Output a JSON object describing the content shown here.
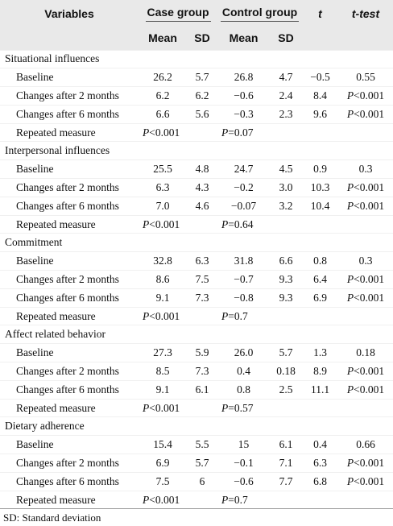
{
  "header": {
    "variables": "Variables",
    "case_group": "Case group",
    "control_group": "Control group",
    "t": "t",
    "t_test": "t-test",
    "case_mean": "Mean",
    "case_sd": "SD",
    "control_mean": "Mean",
    "control_sd": "SD"
  },
  "sections": [
    {
      "title": "Situational influences",
      "rows": [
        [
          "Baseline",
          "26.2",
          "5.7",
          "26.8",
          "4.7",
          "−0.5",
          "0.55"
        ],
        [
          "Changes after 2 months",
          "6.2",
          "6.2",
          "−0.6",
          "2.4",
          "8.4",
          "P<0.001"
        ],
        [
          "Changes after 6 months",
          "6.6",
          "5.6",
          "−0.3",
          "2.3",
          "9.6",
          "P<0.001"
        ],
        [
          "Repeated measure",
          "P<0.001",
          "P=0.07"
        ]
      ]
    },
    {
      "title": "Interpersonal influences",
      "rows": [
        [
          "Baseline",
          "25.5",
          "4.8",
          "24.7",
          "4.5",
          "0.9",
          "0.3"
        ],
        [
          "Changes after 2 months",
          "6.3",
          "4.3",
          "−0.2",
          "3.0",
          "10.3",
          "P<0.001"
        ],
        [
          "Changes after 6 months",
          "7.0",
          "4.6",
          "−0.07",
          "3.2",
          "10.4",
          "P<0.001"
        ],
        [
          "Repeated measure",
          "P<0.001",
          "P=0.64"
        ]
      ]
    },
    {
      "title": "Commitment",
      "rows": [
        [
          "Baseline",
          "32.8",
          "6.3",
          "31.8",
          "6.6",
          "0.8",
          "0.3"
        ],
        [
          "Changes after 2 months",
          "8.6",
          "7.5",
          "−0.7",
          "9.3",
          "6.4",
          "P<0.001"
        ],
        [
          "Changes after 6 months",
          "9.1",
          "7.3",
          "−0.8",
          "9.3",
          "6.9",
          "P<0.001"
        ],
        [
          "Repeated measure",
          "P<0.001",
          "P=0.7"
        ]
      ]
    },
    {
      "title": "Affect related behavior",
      "rows": [
        [
          "Baseline",
          "27.3",
          "5.9",
          "26.0",
          "5.7",
          "1.3",
          "0.18"
        ],
        [
          "Changes after 2 months",
          "8.5",
          "7.3",
          "0.4",
          "0.18",
          "8.9",
          "P<0.001"
        ],
        [
          "Changes after 6 months",
          "9.1",
          "6.1",
          "0.8",
          "2.5",
          "11.1",
          "P<0.001"
        ],
        [
          "Repeated measure",
          "P<0.001",
          "P=0.57"
        ]
      ]
    },
    {
      "title": "Dietary adherence",
      "rows": [
        [
          "Baseline",
          "15.4",
          "5.5",
          "15",
          "6.1",
          "0.4",
          "0.66"
        ],
        [
          "Changes after 2 months",
          "6.9",
          "5.7",
          "−0.1",
          "7.1",
          "6.3",
          "P<0.001"
        ],
        [
          "Changes after 6 months",
          "7.5",
          "6",
          "−0.6",
          "7.7",
          "6.8",
          "P<0.001"
        ],
        [
          "Repeated measure",
          "P<0.001",
          "P=0.7"
        ]
      ]
    }
  ],
  "footnote": "SD: Standard deviation"
}
